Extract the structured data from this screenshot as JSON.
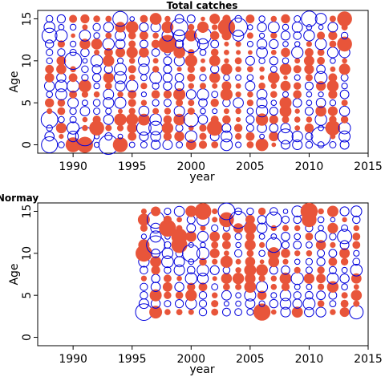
{
  "chart_data": [
    {
      "type": "scatter",
      "title": "Total catches",
      "xlabel": "year",
      "ylabel": "Age",
      "xlim": [
        1987,
        2015
      ],
      "ylim": [
        -1,
        16
      ],
      "xticks": [
        1990,
        1995,
        2000,
        2005,
        2010,
        2015
      ],
      "yticks": [
        0,
        5,
        10,
        15
      ],
      "years": [
        1988,
        1989,
        1990,
        1991,
        1992,
        1993,
        1994,
        1995,
        1996,
        1997,
        1998,
        1999,
        2000,
        2001,
        2002,
        2003,
        2004,
        2005,
        2006,
        2007,
        2008,
        2009,
        2010,
        2011,
        2012,
        2013
      ],
      "ages": [
        0,
        1,
        2,
        3,
        4,
        5,
        6,
        7,
        8,
        9,
        10,
        11,
        12,
        13,
        14,
        15
      ],
      "positive_color": "#e8553a",
      "negative_color": "#0000dd",
      "marker_legend": "filled = positive residual, open = negative residual",
      "seed": 17,
      "emphasis": [
        {
          "x": 1988,
          "y": 0,
          "r": -0.7
        },
        {
          "x": 1988,
          "y": 3,
          "r": -0.75
        },
        {
          "x": 1988,
          "y": 13,
          "r": -0.6
        },
        {
          "x": 1990,
          "y": 10,
          "r": -0.8
        },
        {
          "x": 1991,
          "y": 1,
          "r": -0.95
        },
        {
          "x": 1990,
          "y": 0,
          "r": 0.6
        },
        {
          "x": 1991,
          "y": 0,
          "r": 0.7
        },
        {
          "x": 1992,
          "y": 2,
          "r": 0.6
        },
        {
          "x": 1993,
          "y": 0,
          "r": -1.0
        },
        {
          "x": 1994,
          "y": 0,
          "r": 0.6
        },
        {
          "x": 1994,
          "y": 15,
          "r": -0.6
        },
        {
          "x": 1998,
          "y": 12,
          "r": 0.9
        },
        {
          "x": 1999,
          "y": 14,
          "r": -0.8
        },
        {
          "x": 2000,
          "y": 12,
          "r": -0.8
        },
        {
          "x": 2001,
          "y": 13,
          "r": -0.75
        },
        {
          "x": 2002,
          "y": 2,
          "r": 0.65
        },
        {
          "x": 2003,
          "y": 14,
          "r": 0.8
        },
        {
          "x": 2004,
          "y": 14,
          "r": -0.9
        },
        {
          "x": 2008,
          "y": 1,
          "r": -0.6
        },
        {
          "x": 2010,
          "y": 15,
          "r": -0.65
        },
        {
          "x": 2011,
          "y": 1,
          "r": -1.0
        },
        {
          "x": 2012,
          "y": 2,
          "r": 0.6
        },
        {
          "x": 2013,
          "y": 12,
          "r": 0.6
        },
        {
          "x": 2013,
          "y": 15,
          "r": 0.6
        },
        {
          "x": 1997,
          "y": 2,
          "r": -0.5
        },
        {
          "x": 1996,
          "y": 2,
          "r": -0.55
        },
        {
          "x": 2000,
          "y": 3,
          "r": -0.55
        }
      ]
    },
    {
      "type": "scatter",
      "title": "Normay",
      "xlabel": "year",
      "ylabel": "Age",
      "xlim": [
        1987,
        2015
      ],
      "ylim": [
        -1,
        16
      ],
      "xticks": [
        1990,
        1995,
        2000,
        2005,
        2010,
        2015
      ],
      "yticks": [
        0,
        5,
        10,
        15
      ],
      "years": [
        1996,
        1997,
        1998,
        1999,
        2000,
        2001,
        2002,
        2003,
        2004,
        2005,
        2006,
        2007,
        2008,
        2009,
        2010,
        2011,
        2012,
        2013,
        2014
      ],
      "ages": [
        3,
        4,
        5,
        6,
        7,
        8,
        9,
        10,
        11,
        12,
        13,
        14,
        15
      ],
      "positive_color": "#e8553a",
      "negative_color": "#0000dd",
      "marker_legend": "filled = positive residual, open = negative residual",
      "seed": 91,
      "emphasis": [
        {
          "x": 1996,
          "y": 3,
          "r": -0.75
        },
        {
          "x": 1996,
          "y": 10,
          "r": 0.75
        },
        {
          "x": 1997,
          "y": 14,
          "r": -0.8
        },
        {
          "x": 1997,
          "y": 11,
          "r": -0.9
        },
        {
          "x": 1998,
          "y": 13,
          "r": 0.8
        },
        {
          "x": 1999,
          "y": 12,
          "r": 0.7
        },
        {
          "x": 1999,
          "y": 11,
          "r": 0.7
        },
        {
          "x": 2000,
          "y": 10,
          "r": -0.8
        },
        {
          "x": 2001,
          "y": 15,
          "r": 0.75
        },
        {
          "x": 2003,
          "y": 15,
          "r": -0.75
        },
        {
          "x": 2003,
          "y": 14,
          "r": 0.6
        },
        {
          "x": 2004,
          "y": 14,
          "r": -0.8
        },
        {
          "x": 2006,
          "y": 3,
          "r": 0.8
        },
        {
          "x": 2007,
          "y": 14,
          "r": -0.65
        },
        {
          "x": 2007,
          "y": 11,
          "r": -0.6
        },
        {
          "x": 2010,
          "y": 15,
          "r": 0.8
        },
        {
          "x": 2010,
          "y": 14,
          "r": 0.6
        },
        {
          "x": 2013,
          "y": 12,
          "r": -0.55
        },
        {
          "x": 2014,
          "y": 3,
          "r": -0.5
        }
      ]
    }
  ]
}
